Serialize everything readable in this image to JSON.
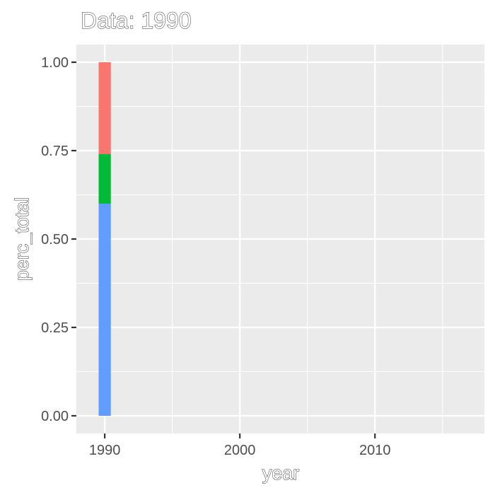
{
  "chart_data": {
    "type": "bar",
    "stacked": true,
    "title": "Data: 1990",
    "xlabel": "year",
    "ylabel": "perc_total",
    "x_ticks": [
      1990,
      2000,
      2010
    ],
    "x_minor_ticks": [
      1995,
      2005,
      2015
    ],
    "y_ticks": [
      "0.00",
      "0.25",
      "0.50",
      "0.75",
      "1.00"
    ],
    "xlim": [
      1987.9,
      2018.1
    ],
    "ylim": [
      -0.05,
      1.05
    ],
    "bar_x": 1990,
    "bar_width_years": 0.9,
    "segments": [
      {
        "value": 0.6,
        "color": "#619CFF"
      },
      {
        "value": 0.14,
        "color": "#00BA38"
      },
      {
        "value": 0.26,
        "color": "#F8766D"
      }
    ],
    "grid": true,
    "legend": "none",
    "panel_background": "#EBEBEB"
  }
}
